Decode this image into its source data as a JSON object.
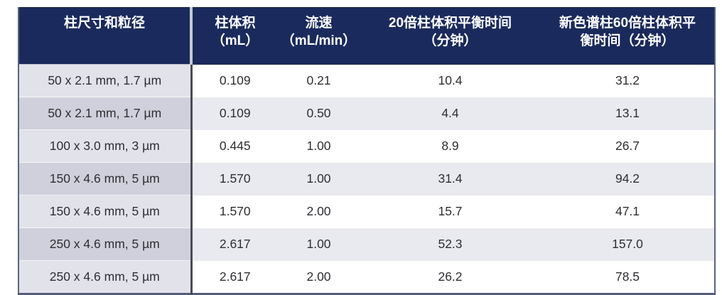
{
  "colors": {
    "header_bg": "#1a2a5c",
    "header_text": "#ffffff",
    "col1_row_odd_bg": "#e2e2ea",
    "col1_row_even_bg": "#d0d0dc",
    "data_row_odd_bg": "#ffffff",
    "data_row_even_bg": "#e9e9f0",
    "body_text": "#2e2e33",
    "col1_divider": "#4a4c55",
    "header_col1_divider": "#c7c8d2",
    "outer_border": "#525d7d"
  },
  "table": {
    "columns": [
      {
        "line1": "柱尺寸和粒径",
        "line2": ""
      },
      {
        "line1": "柱体积",
        "line2": "（mL）"
      },
      {
        "line1": "流速",
        "line2": "（mL/min）"
      },
      {
        "line1": "20倍柱体积平衡时间",
        "line2": "（分钟）"
      },
      {
        "line1": "新色谱柱60倍柱体积平",
        "line2": "衡时间（分钟）"
      }
    ],
    "rows": [
      {
        "dimension": "50 x 2.1 mm, 1.7 µm",
        "volume": "0.109",
        "flow_rate": "0.21",
        "equil_20x": "10.4",
        "equil_60x": "31.2"
      },
      {
        "dimension": "50 x 2.1 mm, 1.7 µm",
        "volume": "0.109",
        "flow_rate": "0.50",
        "equil_20x": "4.4",
        "equil_60x": "13.1"
      },
      {
        "dimension": "100 x 3.0 mm, 3 µm",
        "volume": "0.445",
        "flow_rate": "1.00",
        "equil_20x": "8.9",
        "equil_60x": "26.7"
      },
      {
        "dimension": "150 x 4.6 mm, 5 µm",
        "volume": "1.570",
        "flow_rate": "1.00",
        "equil_20x": "31.4",
        "equil_60x": "94.2"
      },
      {
        "dimension": "150 x 4.6 mm, 5 µm",
        "volume": "1.570",
        "flow_rate": "2.00",
        "equil_20x": "15.7",
        "equil_60x": "47.1"
      },
      {
        "dimension": "250 x 4.6 mm, 5 µm",
        "volume": "2.617",
        "flow_rate": "1.00",
        "equil_20x": "52.3",
        "equil_60x": "157.0"
      },
      {
        "dimension": "250 x 4.6 mm, 5 µm",
        "volume": "2.617",
        "flow_rate": "2.00",
        "equil_20x": "26.2",
        "equil_60x": "78.5"
      }
    ]
  },
  "chart_data": {
    "type": "table",
    "columns": [
      "柱尺寸和粒径",
      "柱体积（mL）",
      "流速（mL/min）",
      "20倍柱体积平衡时间（分钟）",
      "新色谱柱60倍柱体积平衡时间（分钟）"
    ],
    "rows": [
      [
        "50 x 2.1 mm, 1.7 µm",
        0.109,
        0.21,
        10.4,
        31.2
      ],
      [
        "50 x 2.1 mm, 1.7 µm",
        0.109,
        0.5,
        4.4,
        13.1
      ],
      [
        "100 x 3.0 mm, 3 µm",
        0.445,
        1.0,
        8.9,
        26.7
      ],
      [
        "150 x 4.6 mm, 5 µm",
        1.57,
        1.0,
        31.4,
        94.2
      ],
      [
        "150 x 4.6 mm, 5 µm",
        1.57,
        2.0,
        15.7,
        47.1
      ],
      [
        "250 x 4.6 mm, 5 µm",
        2.617,
        1.0,
        52.3,
        157.0
      ],
      [
        "250 x 4.6 mm, 5 µm",
        2.617,
        2.0,
        26.2,
        78.5
      ]
    ]
  }
}
